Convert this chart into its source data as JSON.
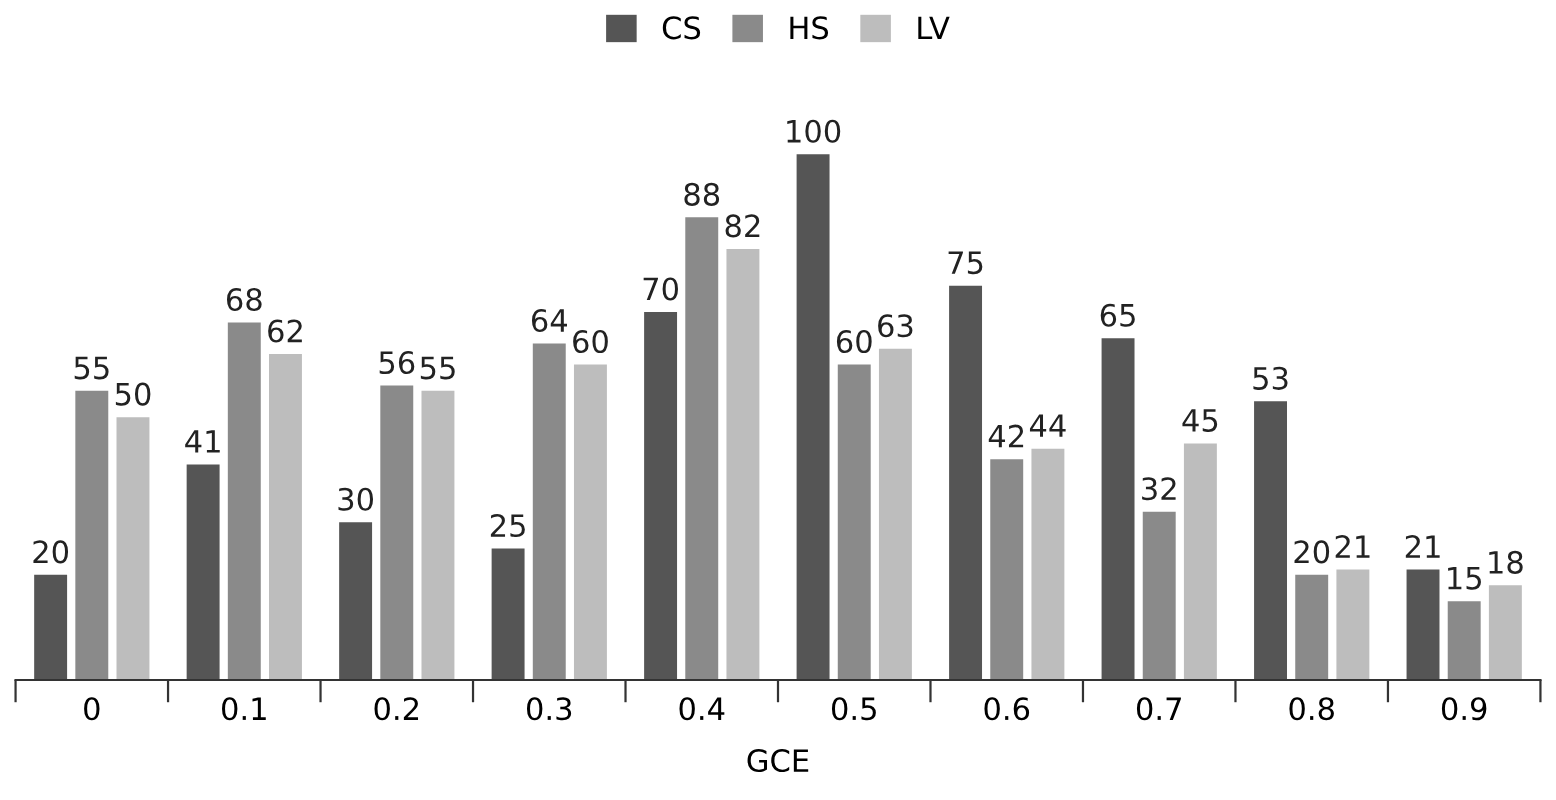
{
  "chart_data": {
    "type": "bar",
    "xlabel": "GCE",
    "categories": [
      "0",
      "0.1",
      "0.2",
      "0.3",
      "0.4",
      "0.5",
      "0.6",
      "0.7",
      "0.8",
      "0.9"
    ],
    "series": [
      {
        "name": "CS",
        "color": "#555555",
        "values": [
          20,
          41,
          30,
          25,
          70,
          100,
          75,
          65,
          53,
          21
        ]
      },
      {
        "name": "HS",
        "color": "#8a8a8a",
        "values": [
          55,
          68,
          56,
          64,
          88,
          60,
          42,
          32,
          20,
          15
        ]
      },
      {
        "name": "LV",
        "color": "#bdbdbd",
        "values": [
          50,
          62,
          55,
          60,
          82,
          63,
          44,
          45,
          21,
          18
        ]
      }
    ],
    "data_labels": true,
    "legend": "top",
    "grid": false
  }
}
